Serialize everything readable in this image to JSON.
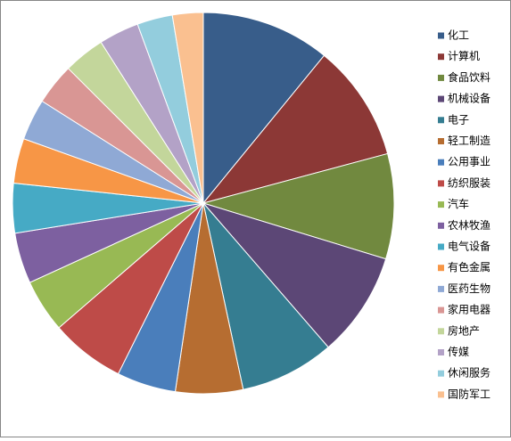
{
  "chart_data": {
    "type": "pie",
    "categories": [
      "化工",
      "计算机",
      "食品饮料",
      "机械设备",
      "电子",
      "轻工制造",
      "公用事业",
      "纺织服装",
      "汽车",
      "农林牧渔",
      "电气设备",
      "有色金属",
      "医药生物",
      "家用电器",
      "房地产",
      "传媒",
      "休闲服务",
      "国防军工"
    ],
    "values": [
      10.9,
      9.9,
      8.9,
      8.9,
      8.0,
      5.7,
      5.0,
      6.3,
      4.5,
      4.3,
      4.2,
      3.8,
      3.5,
      3.5,
      3.5,
      3.4,
      3.0,
      2.6
    ],
    "colors": [
      "#385d8a",
      "#8c3836",
      "#71893f",
      "#5c4776",
      "#357d91",
      "#b66d31",
      "#4a7ebb",
      "#be4b48",
      "#98b954",
      "#7d60a0",
      "#46aac5",
      "#f79646",
      "#8fa9d5",
      "#d99694",
      "#c3d69b",
      "#b3a2c7",
      "#93cddd",
      "#fac090"
    ],
    "legend": "right"
  }
}
